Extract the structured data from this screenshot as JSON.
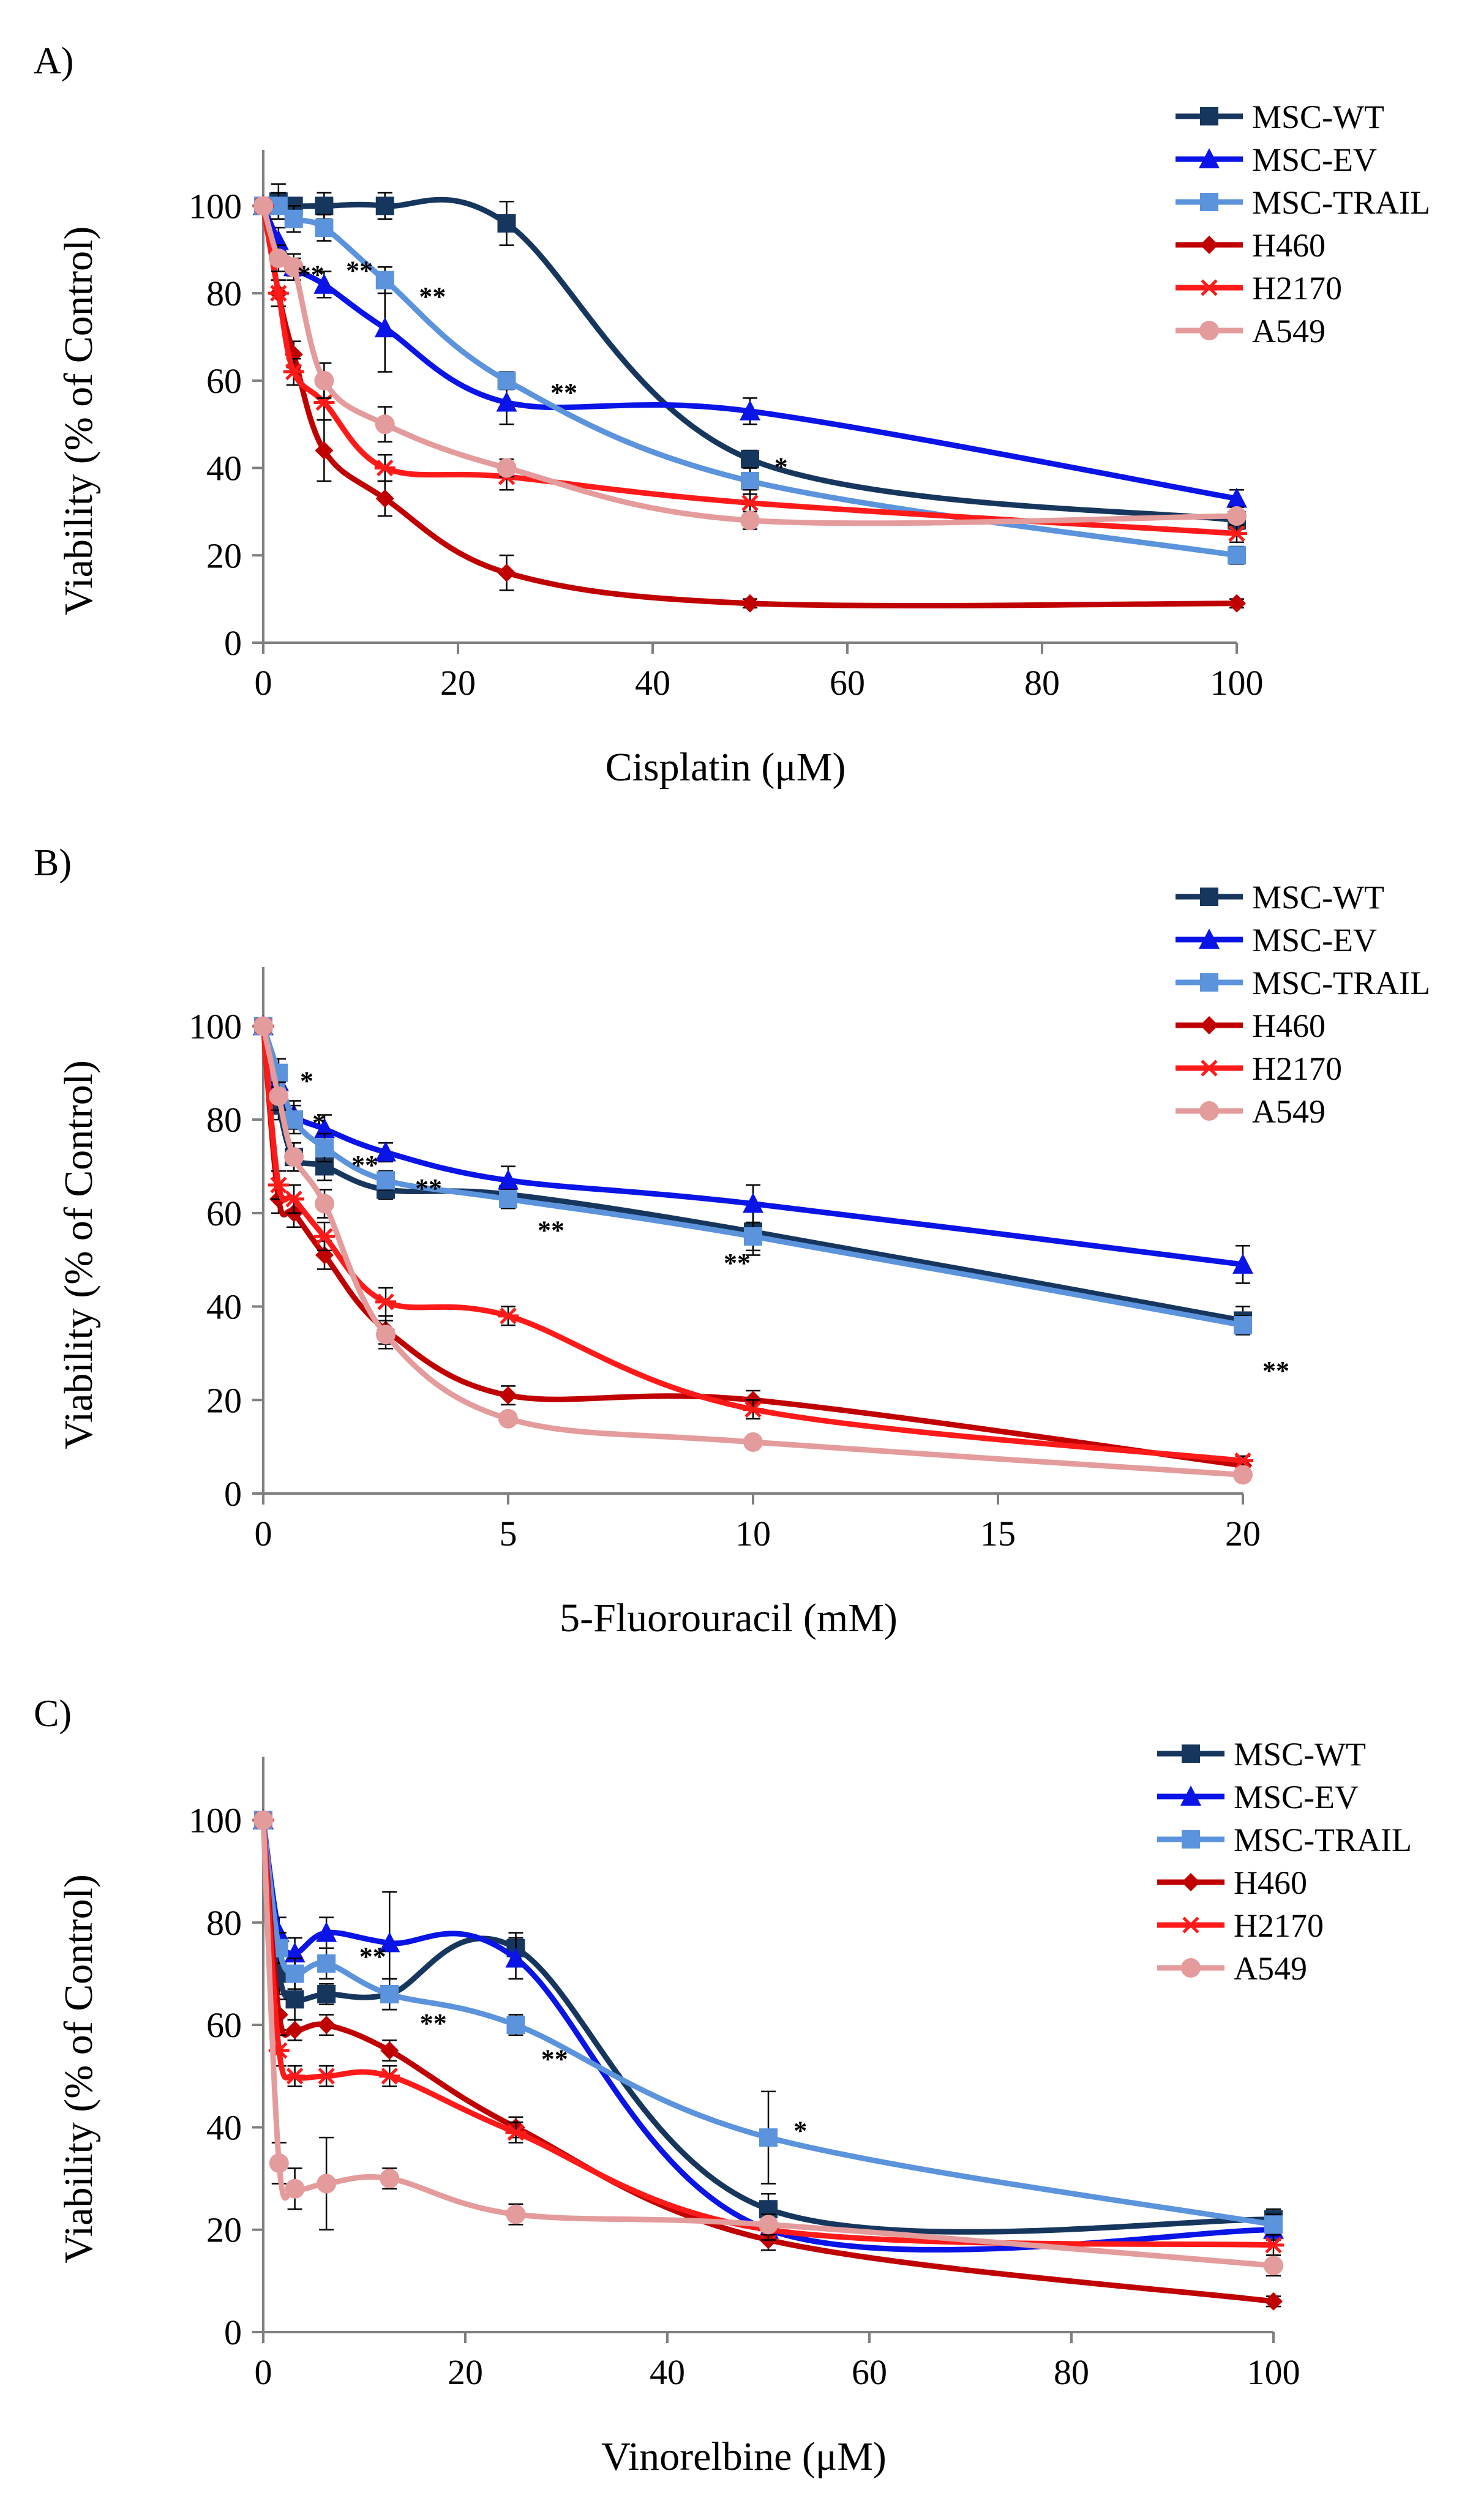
{
  "figure": {
    "description_free": true
  },
  "chart_data": [
    {
      "type": "line",
      "panel_label": "A)",
      "xlabel": "Cisplatin (μM)",
      "ylabel": "Viability (% of Control)",
      "xlim": [
        0,
        100
      ],
      "ylim": [
        0,
        110
      ],
      "xticks": [
        0,
        20,
        40,
        60,
        80,
        100
      ],
      "yticks": [
        0,
        20,
        40,
        60,
        80,
        100
      ],
      "legend_position": "top-right",
      "series": [
        {
          "name": "MSC-WT",
          "color": "#17365d",
          "marker": "square",
          "x": [
            0,
            1.5625,
            3.125,
            6.25,
            12.5,
            25,
            50,
            100
          ],
          "y": [
            100,
            101,
            100,
            100,
            100,
            96,
            42,
            28
          ],
          "err": [
            0,
            4,
            0,
            3,
            3,
            5,
            2,
            2
          ]
        },
        {
          "name": "MSC-EV",
          "color": "#0a14e6",
          "marker": "triangle",
          "x": [
            0,
            1.5625,
            3.125,
            6.25,
            12.5,
            25,
            50,
            100
          ],
          "y": [
            100,
            92,
            86,
            82,
            72,
            55,
            53,
            33
          ],
          "err": [
            0,
            3,
            2,
            3,
            10,
            5,
            3,
            2
          ]
        },
        {
          "name": "MSC-TRAIL",
          "color": "#5b93dc",
          "marker": "square",
          "x": [
            0,
            1.5625,
            3.125,
            6.25,
            12.5,
            25,
            50,
            100
          ],
          "y": [
            100,
            100,
            97,
            95,
            83,
            60,
            37,
            20
          ],
          "err": [
            0,
            3,
            3,
            3,
            3,
            2,
            3,
            2
          ]
        },
        {
          "name": "H460",
          "color": "#c00000",
          "marker": "diamond",
          "x": [
            0,
            1.5625,
            3.125,
            6.25,
            12.5,
            25,
            50,
            100
          ],
          "y": [
            100,
            80,
            66,
            44,
            33,
            16,
            9,
            9
          ],
          "err": [
            0,
            3,
            3,
            7,
            4,
            4,
            1,
            1
          ]
        },
        {
          "name": "H2170",
          "color": "#ff1a1a",
          "marker": "asterisk",
          "x": [
            0,
            1.5625,
            3.125,
            6.25,
            12.5,
            25,
            50,
            100
          ],
          "y": [
            100,
            80,
            62,
            55,
            40,
            38,
            32,
            25
          ],
          "err": [
            0,
            3,
            3,
            4,
            3,
            3,
            3,
            2
          ]
        },
        {
          "name": "A549",
          "color": "#e49b9b",
          "marker": "circle",
          "x": [
            0,
            1.5625,
            3.125,
            6.25,
            12.5,
            25,
            50,
            100
          ],
          "y": [
            100,
            88,
            86,
            60,
            50,
            40,
            28,
            29
          ],
          "err": [
            0,
            3,
            3,
            4,
            4,
            2,
            2,
            2
          ]
        }
      ],
      "annotations": [
        {
          "text": "**",
          "x": 3.5,
          "y": 85
        },
        {
          "text": "**",
          "x": 8.5,
          "y": 86
        },
        {
          "text": "**",
          "x": 16,
          "y": 80
        },
        {
          "text": "**",
          "x": 29.5,
          "y": 58
        },
        {
          "text": "*",
          "x": 52.5,
          "y": 41
        }
      ]
    },
    {
      "type": "line",
      "panel_label": "B)",
      "xlabel": "5-Fluorouracil (mM)",
      "ylabel": "Viability (% of Control)",
      "xlim": [
        0,
        20
      ],
      "ylim": [
        0,
        110
      ],
      "xticks": [
        0,
        5,
        10,
        15,
        20
      ],
      "yticks": [
        0,
        20,
        40,
        60,
        80,
        100
      ],
      "legend_position": "top-right",
      "series": [
        {
          "name": "MSC-WT",
          "color": "#17365d",
          "marker": "square",
          "x": [
            0,
            0.3125,
            0.625,
            1.25,
            2.5,
            5,
            10,
            20
          ],
          "y": [
            100,
            83,
            72,
            70,
            65,
            64,
            56,
            37
          ],
          "err": [
            0,
            3,
            3,
            3,
            2,
            3,
            5,
            3
          ]
        },
        {
          "name": "MSC-EV",
          "color": "#0a14e6",
          "marker": "triangle",
          "x": [
            0,
            0.3125,
            0.625,
            1.25,
            2.5,
            5,
            10,
            20
          ],
          "y": [
            100,
            88,
            81,
            78,
            73,
            67,
            62,
            49
          ],
          "err": [
            0,
            3,
            3,
            3,
            2,
            3,
            4,
            4
          ]
        },
        {
          "name": "MSC-TRAIL",
          "color": "#5b93dc",
          "marker": "square",
          "x": [
            0,
            0.3125,
            0.625,
            1.25,
            2.5,
            5,
            10,
            20
          ],
          "y": [
            100,
            90,
            80,
            74,
            67,
            63,
            55,
            36
          ],
          "err": [
            0,
            3,
            3,
            3,
            2,
            2,
            3,
            2
          ]
        },
        {
          "name": "H460",
          "color": "#c00000",
          "marker": "diamond",
          "x": [
            0,
            0.3125,
            0.625,
            1.25,
            2.5,
            5,
            10,
            20
          ],
          "y": [
            100,
            63,
            60,
            51,
            35,
            21,
            20,
            6
          ],
          "err": [
            0,
            3,
            3,
            3,
            3,
            2,
            2,
            1
          ]
        },
        {
          "name": "H2170",
          "color": "#ff1a1a",
          "marker": "asterisk",
          "x": [
            0,
            0.3125,
            0.625,
            1.25,
            2.5,
            5,
            10,
            20
          ],
          "y": [
            100,
            66,
            63,
            55,
            41,
            38,
            18,
            7
          ],
          "err": [
            0,
            3,
            3,
            3,
            3,
            2,
            2,
            1
          ]
        },
        {
          "name": "A549",
          "color": "#e49b9b",
          "marker": "circle",
          "x": [
            0,
            0.3125,
            0.625,
            1.25,
            2.5,
            5,
            10,
            20
          ],
          "y": [
            100,
            85,
            72,
            62,
            34,
            16,
            11,
            4
          ],
          "err": [
            0,
            3,
            3,
            3,
            3,
            1,
            1,
            1
          ]
        }
      ],
      "annotations": [
        {
          "text": "*",
          "x": 0.75,
          "y": 89
        },
        {
          "text": "*",
          "x": 1.0,
          "y": 80
        },
        {
          "text": "**",
          "x": 1.8,
          "y": 71
        },
        {
          "text": "**",
          "x": 3.1,
          "y": 66
        },
        {
          "text": "**",
          "x": 5.6,
          "y": 57
        },
        {
          "text": "**",
          "x": 9.4,
          "y": 50
        },
        {
          "text": "**",
          "x": 20.4,
          "y": 27
        }
      ]
    },
    {
      "type": "line",
      "panel_label": "C)",
      "xlabel": "Vinorelbine (μM)",
      "ylabel": "Viability (% of Control)",
      "xlim": [
        0,
        100
      ],
      "ylim": [
        0,
        110
      ],
      "xticks": [
        0,
        20,
        40,
        60,
        80,
        100
      ],
      "yticks": [
        0,
        20,
        40,
        60,
        80,
        100
      ],
      "legend_position": "top-right",
      "series": [
        {
          "name": "MSC-WT",
          "color": "#17365d",
          "marker": "square",
          "x": [
            0,
            1.5625,
            3.125,
            6.25,
            12.5,
            25,
            50,
            100
          ],
          "y": [
            100,
            70,
            65,
            66,
            66,
            75,
            24,
            22
          ],
          "err": [
            0,
            4,
            4,
            2,
            3,
            3,
            3,
            2
          ]
        },
        {
          "name": "MSC-EV",
          "color": "#0a14e6",
          "marker": "triangle",
          "x": [
            0,
            1.5625,
            3.125,
            6.25,
            12.5,
            25,
            50,
            100
          ],
          "y": [
            100,
            78,
            74,
            78,
            76,
            73,
            20,
            20
          ],
          "err": [
            0,
            3,
            3,
            3,
            10,
            4,
            2,
            2
          ]
        },
        {
          "name": "MSC-TRAIL",
          "color": "#5b93dc",
          "marker": "square",
          "x": [
            0,
            1.5625,
            3.125,
            6.25,
            12.5,
            25,
            50,
            100
          ],
          "y": [
            100,
            75,
            70,
            72,
            66,
            60,
            38,
            21
          ],
          "err": [
            0,
            3,
            3,
            3,
            3,
            2,
            9,
            2
          ]
        },
        {
          "name": "H460",
          "color": "#c00000",
          "marker": "diamond",
          "x": [
            0,
            1.5625,
            3.125,
            6.25,
            12.5,
            25,
            50,
            100
          ],
          "y": [
            100,
            62,
            59,
            60,
            55,
            40,
            18,
            6
          ],
          "err": [
            0,
            3,
            2,
            2,
            2,
            2,
            2,
            1
          ]
        },
        {
          "name": "H2170",
          "color": "#ff1a1a",
          "marker": "asterisk",
          "x": [
            0,
            1.5625,
            3.125,
            6.25,
            12.5,
            25,
            50,
            100
          ],
          "y": [
            100,
            55,
            50,
            50,
            50,
            39,
            20,
            17
          ],
          "err": [
            0,
            3,
            2,
            2,
            2,
            2,
            2,
            2
          ]
        },
        {
          "name": "A549",
          "color": "#e49b9b",
          "marker": "circle",
          "x": [
            0,
            1.5625,
            3.125,
            6.25,
            12.5,
            25,
            50,
            100
          ],
          "y": [
            100,
            33,
            28,
            29,
            30,
            23,
            21,
            13
          ],
          "err": [
            0,
            4,
            4,
            9,
            2,
            2,
            2,
            2
          ]
        }
      ],
      "annotations": [
        {
          "text": "**",
          "x": 9.5,
          "y": 74
        },
        {
          "text": "**",
          "x": 15.5,
          "y": 61
        },
        {
          "text": "**",
          "x": 27.5,
          "y": 54
        },
        {
          "text": "*",
          "x": 52.5,
          "y": 40
        }
      ]
    }
  ]
}
